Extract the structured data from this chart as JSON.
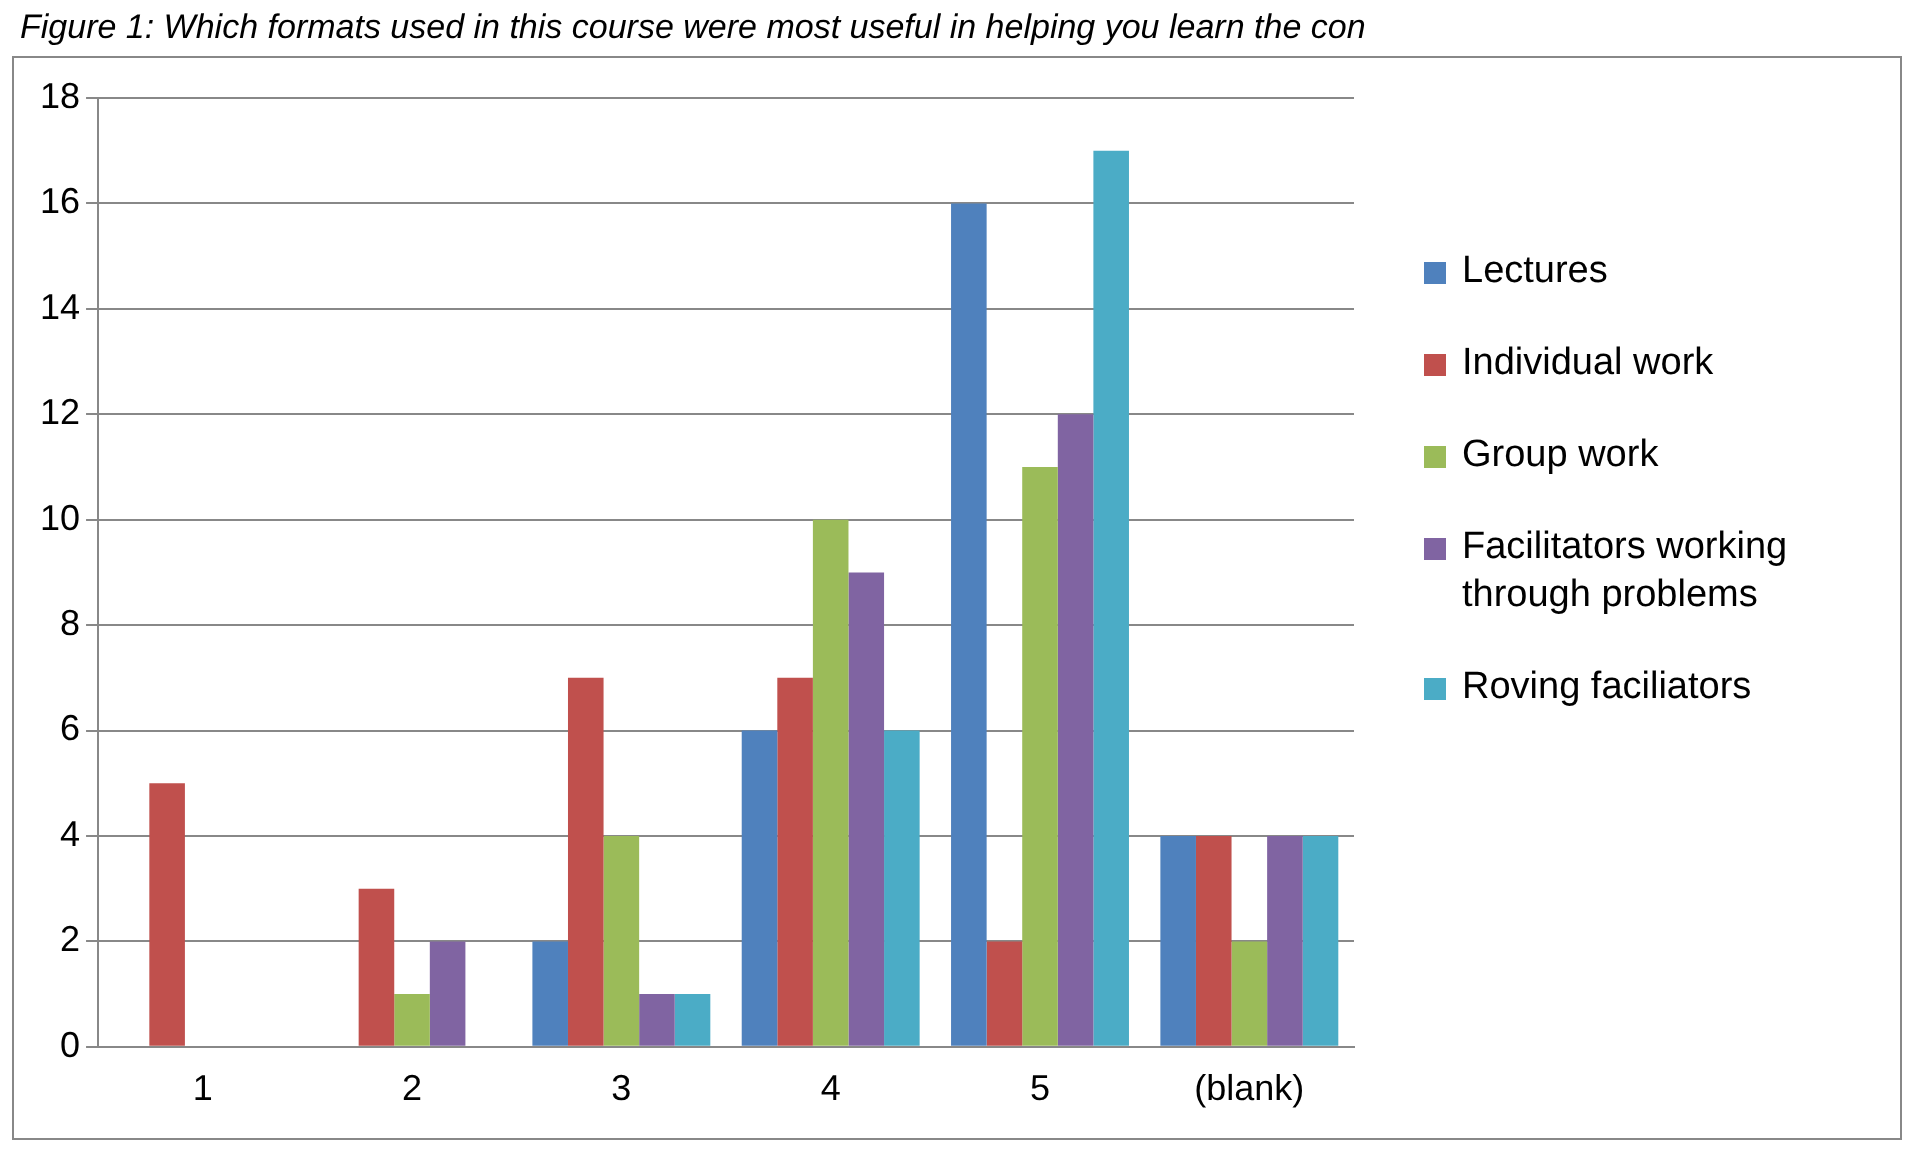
{
  "chart_data": {
    "type": "bar",
    "title": "Figure 1: Which formats used in this course were most useful in helping you learn the con",
    "categories": [
      "1",
      "2",
      "3",
      "4",
      "5",
      "(blank)"
    ],
    "series": [
      {
        "name": "Lectures",
        "color": "#4f81bd",
        "values": [
          0,
          0,
          2,
          6,
          16,
          4
        ]
      },
      {
        "name": "Individual work",
        "color": "#c0504d",
        "values": [
          5,
          3,
          7,
          7,
          2,
          4
        ]
      },
      {
        "name": "Group work",
        "color": "#9bbb59",
        "values": [
          0,
          1,
          4,
          10,
          11,
          2
        ]
      },
      {
        "name": "Facilitators working through problems",
        "color": "#8064a2",
        "values": [
          0,
          2,
          1,
          9,
          12,
          4
        ]
      },
      {
        "name": "Roving faciliators",
        "color": "#4bacc6",
        "values": [
          0,
          0,
          1,
          6,
          17,
          4
        ]
      }
    ],
    "ylim": [
      0,
      18
    ],
    "yticks": [
      0,
      2,
      4,
      6,
      8,
      10,
      12,
      14,
      16,
      18
    ],
    "grid": "y",
    "legend": "right"
  }
}
